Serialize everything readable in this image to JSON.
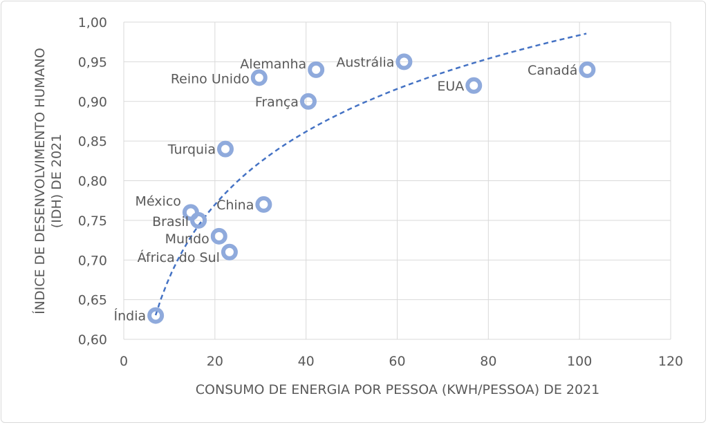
{
  "chart_data": {
    "type": "scatter",
    "title": "",
    "xlabel": "CONSUMO DE ENERGIA POR PESSOA (KWH/PESSOA) DE 2021",
    "ylabel_lines": [
      "ÍNDICE DE DESENVOLVIMENTO HUMANO",
      "(IDH) DE 2021"
    ],
    "xlim": [
      0,
      120
    ],
    "ylim": [
      0.6,
      1.0
    ],
    "x_ticks": [
      0,
      20,
      40,
      60,
      80,
      100,
      120
    ],
    "x_tick_labels": [
      "0",
      "20",
      "40",
      "60",
      "80",
      "100",
      "120"
    ],
    "y_ticks": [
      0.6,
      0.65,
      0.7,
      0.75,
      0.8,
      0.85,
      0.9,
      0.95,
      1.0
    ],
    "y_tick_labels": [
      "0,60",
      "0,65",
      "0,70",
      "0,75",
      "0,80",
      "0,85",
      "0,90",
      "0,95",
      "1,00"
    ],
    "grid": true,
    "points": [
      {
        "label": "Índia",
        "x": 7.0,
        "y": 0.63
      },
      {
        "label": "México",
        "x": 14.7,
        "y": 0.76
      },
      {
        "label": "Brasil",
        "x": 16.4,
        "y": 0.75
      },
      {
        "label": "Mundo",
        "x": 20.9,
        "y": 0.73
      },
      {
        "label": "África do Sul",
        "x": 23.2,
        "y": 0.71
      },
      {
        "label": "China",
        "x": 30.7,
        "y": 0.77
      },
      {
        "label": "Turquia",
        "x": 22.3,
        "y": 0.84
      },
      {
        "label": "Reino Unido",
        "x": 29.7,
        "y": 0.93
      },
      {
        "label": "França",
        "x": 40.5,
        "y": 0.9
      },
      {
        "label": "Alemanha",
        "x": 42.2,
        "y": 0.94
      },
      {
        "label": "Austrália",
        "x": 61.5,
        "y": 0.95
      },
      {
        "label": "EUA",
        "x": 76.8,
        "y": 0.92
      },
      {
        "label": "Canadá",
        "x": 101.7,
        "y": 0.94
      }
    ],
    "trendline": {
      "type": "logarithmic",
      "a": 0.372,
      "b": 0.1328,
      "x_range": [
        7.0,
        101.5
      ]
    },
    "colors": {
      "marker": "#8FAADC",
      "trend": "#4472C4",
      "grid": "#d9d9d9",
      "text": "#595959"
    }
  }
}
